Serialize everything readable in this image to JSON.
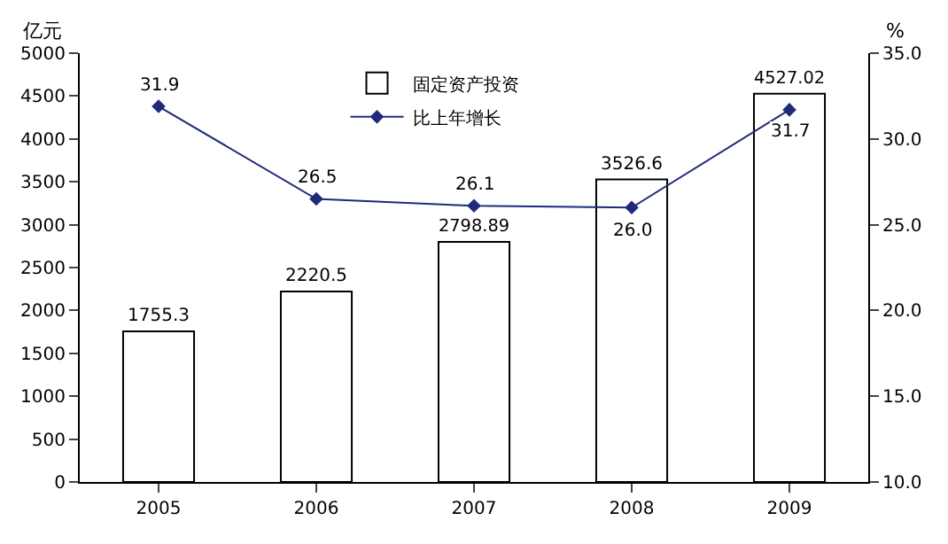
{
  "chart_data": {
    "type": "bar",
    "categories": [
      "2005",
      "2006",
      "2007",
      "2008",
      "2009"
    ],
    "ylabel": "亿元",
    "y2label": "%",
    "series": [
      {
        "name": "固定资产投资",
        "color": "#ffffff",
        "values": [
          1755.3,
          2220.5,
          2798.89,
          3526.6,
          4527.02
        ],
        "value_labels": [
          "1755.3",
          "2220.5",
          "2798.89",
          "3526.6",
          "4527.02"
        ]
      },
      {
        "name": "比上年增长",
        "type": "line",
        "axis": "y2",
        "color": "#1f2a7a",
        "values": [
          31.9,
          26.5,
          26.1,
          26.0,
          31.7
        ],
        "value_labels": [
          "31.9",
          "26.5",
          "26.1",
          "26.0",
          "31.7"
        ]
      }
    ],
    "ylim": [
      0,
      5000
    ],
    "yticks": [
      0,
      500,
      1000,
      1500,
      2000,
      2500,
      3000,
      3500,
      4000,
      4500,
      5000
    ],
    "y2lim": [
      10,
      35
    ],
    "y2ticks": [
      {
        "value": 10,
        "label": "10.0"
      },
      {
        "value": 15,
        "label": "15.0"
      },
      {
        "value": 20,
        "label": "20.0"
      },
      {
        "value": 25,
        "label": "25.0"
      },
      {
        "value": 30,
        "label": "30.0"
      },
      {
        "value": 35,
        "label": "35.0"
      }
    ],
    "legend": "top",
    "marker": "diamond"
  }
}
